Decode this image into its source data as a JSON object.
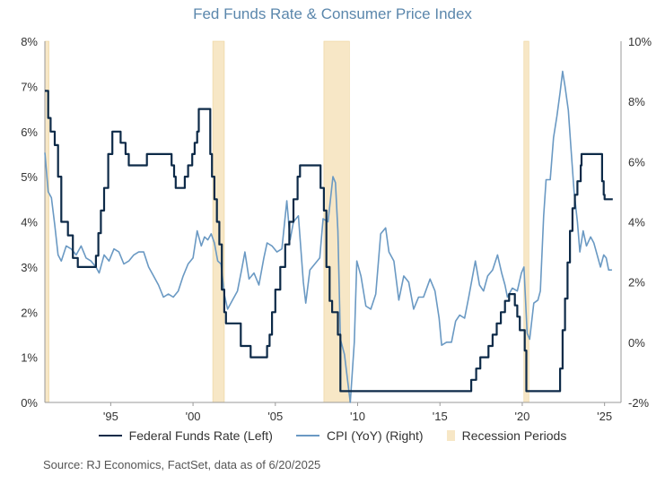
{
  "colors": {
    "fed": "#0d2a48",
    "cpi": "#6a99c3",
    "recession": "#f7e7c6",
    "recession_edge": "#ecd39a",
    "title": "#5b87ac"
  },
  "chart_data": {
    "type": "line",
    "title": "Fed Funds Rate & Consumer Price Index",
    "x_range": [
      1991.0,
      2026.0
    ],
    "x_ticks": [
      {
        "value": 1995,
        "label": "'95"
      },
      {
        "value": 2000,
        "label": "'00"
      },
      {
        "value": 2005,
        "label": "'05"
      },
      {
        "value": 2010,
        "label": "'10"
      },
      {
        "value": 2015,
        "label": "'15"
      },
      {
        "value": 2020,
        "label": "'20"
      },
      {
        "value": 2025,
        "label": "'25"
      }
    ],
    "y_left": {
      "range": [
        0,
        8
      ],
      "ticks": [
        0,
        1,
        2,
        3,
        4,
        5,
        6,
        7,
        8
      ],
      "tick_labels": [
        "0%",
        "1%",
        "2%",
        "3%",
        "4%",
        "5%",
        "6%",
        "7%",
        "8%"
      ]
    },
    "y_right": {
      "range": [
        -2,
        10
      ],
      "ticks": [
        -2,
        0,
        2,
        4,
        6,
        8,
        10
      ],
      "tick_labels": [
        "-2%",
        "0%",
        "2%",
        "4%",
        "6%",
        "8%",
        "10%"
      ]
    },
    "recessions": [
      [
        1991.0,
        1991.25
      ],
      [
        2001.2,
        2001.9
      ],
      [
        2007.95,
        2009.5
      ],
      [
        2020.1,
        2020.4
      ]
    ],
    "series": [
      {
        "name": "Federal Funds Rate (Left)",
        "axis": "left",
        "points": [
          [
            1991.0,
            6.9
          ],
          [
            1991.2,
            6.3
          ],
          [
            1991.35,
            6.0
          ],
          [
            1991.6,
            5.7
          ],
          [
            1991.8,
            5.0
          ],
          [
            1992.0,
            4.0
          ],
          [
            1992.4,
            3.7
          ],
          [
            1992.7,
            3.2
          ],
          [
            1993.0,
            3.0
          ],
          [
            1993.9,
            3.0
          ],
          [
            1994.1,
            3.25
          ],
          [
            1994.25,
            3.75
          ],
          [
            1994.4,
            4.25
          ],
          [
            1994.6,
            4.75
          ],
          [
            1994.85,
            5.5
          ],
          [
            1995.1,
            6.0
          ],
          [
            1995.6,
            5.75
          ],
          [
            1995.9,
            5.5
          ],
          [
            1996.1,
            5.25
          ],
          [
            1997.2,
            5.5
          ],
          [
            1998.7,
            5.25
          ],
          [
            1998.85,
            5.0
          ],
          [
            1998.95,
            4.75
          ],
          [
            1999.5,
            5.0
          ],
          [
            1999.7,
            5.25
          ],
          [
            1999.95,
            5.5
          ],
          [
            2000.1,
            5.75
          ],
          [
            2000.25,
            6.0
          ],
          [
            2000.35,
            6.5
          ],
          [
            2000.95,
            6.5
          ],
          [
            2001.05,
            5.5
          ],
          [
            2001.15,
            5.0
          ],
          [
            2001.3,
            4.5
          ],
          [
            2001.45,
            4.0
          ],
          [
            2001.6,
            3.5
          ],
          [
            2001.75,
            2.5
          ],
          [
            2001.9,
            2.0
          ],
          [
            2002.0,
            1.75
          ],
          [
            2002.9,
            1.25
          ],
          [
            2003.5,
            1.0
          ],
          [
            2004.45,
            1.0
          ],
          [
            2004.5,
            1.25
          ],
          [
            2004.65,
            1.5
          ],
          [
            2004.8,
            2.0
          ],
          [
            2005.0,
            2.5
          ],
          [
            2005.3,
            3.0
          ],
          [
            2005.6,
            3.5
          ],
          [
            2005.85,
            4.0
          ],
          [
            2006.1,
            4.5
          ],
          [
            2006.35,
            5.0
          ],
          [
            2006.5,
            5.25
          ],
          [
            2007.65,
            5.25
          ],
          [
            2007.75,
            4.75
          ],
          [
            2007.95,
            4.25
          ],
          [
            2008.1,
            3.0
          ],
          [
            2008.3,
            2.25
          ],
          [
            2008.45,
            2.0
          ],
          [
            2008.8,
            1.5
          ],
          [
            2008.95,
            0.25
          ],
          [
            2015.9,
            0.25
          ],
          [
            2016.9,
            0.5
          ],
          [
            2017.2,
            0.75
          ],
          [
            2017.45,
            1.0
          ],
          [
            2017.95,
            1.25
          ],
          [
            2018.2,
            1.5
          ],
          [
            2018.45,
            1.75
          ],
          [
            2018.7,
            2.0
          ],
          [
            2018.95,
            2.25
          ],
          [
            2019.2,
            2.4
          ],
          [
            2019.55,
            2.15
          ],
          [
            2019.7,
            1.9
          ],
          [
            2019.85,
            1.6
          ],
          [
            2020.15,
            1.15
          ],
          [
            2020.25,
            0.25
          ],
          [
            2022.15,
            0.25
          ],
          [
            2022.3,
            0.75
          ],
          [
            2022.45,
            1.6
          ],
          [
            2022.6,
            2.3
          ],
          [
            2022.75,
            3.1
          ],
          [
            2022.9,
            3.8
          ],
          [
            2023.05,
            4.3
          ],
          [
            2023.2,
            4.6
          ],
          [
            2023.35,
            4.9
          ],
          [
            2023.55,
            5.25
          ],
          [
            2023.6,
            5.5
          ],
          [
            2024.7,
            5.5
          ],
          [
            2024.85,
            4.9
          ],
          [
            2024.95,
            4.6
          ],
          [
            2025.0,
            4.5
          ],
          [
            2025.5,
            4.5
          ]
        ]
      },
      {
        "name": "CPI (YoY) (Right)",
        "axis": "right",
        "points": [
          [
            1991.0,
            6.3
          ],
          [
            1991.2,
            5.0
          ],
          [
            1991.4,
            4.8
          ],
          [
            1991.6,
            3.9
          ],
          [
            1991.8,
            2.9
          ],
          [
            1992.0,
            2.7
          ],
          [
            1992.3,
            3.2
          ],
          [
            1992.6,
            3.1
          ],
          [
            1992.9,
            2.9
          ],
          [
            1993.2,
            3.2
          ],
          [
            1993.5,
            2.8
          ],
          [
            1993.8,
            2.7
          ],
          [
            1994.1,
            2.5
          ],
          [
            1994.3,
            2.3
          ],
          [
            1994.6,
            2.9
          ],
          [
            1994.9,
            2.7
          ],
          [
            1995.2,
            3.1
          ],
          [
            1995.5,
            3.0
          ],
          [
            1995.8,
            2.6
          ],
          [
            1996.1,
            2.7
          ],
          [
            1996.4,
            2.9
          ],
          [
            1996.7,
            3.0
          ],
          [
            1997.0,
            3.0
          ],
          [
            1997.3,
            2.5
          ],
          [
            1997.6,
            2.2
          ],
          [
            1997.9,
            1.9
          ],
          [
            1998.2,
            1.5
          ],
          [
            1998.5,
            1.6
          ],
          [
            1998.8,
            1.5
          ],
          [
            1999.1,
            1.7
          ],
          [
            1999.4,
            2.2
          ],
          [
            1999.7,
            2.6
          ],
          [
            2000.0,
            2.8
          ],
          [
            2000.25,
            3.7
          ],
          [
            2000.5,
            3.2
          ],
          [
            2000.7,
            3.5
          ],
          [
            2000.9,
            3.4
          ],
          [
            2001.1,
            3.6
          ],
          [
            2001.3,
            3.3
          ],
          [
            2001.5,
            2.7
          ],
          [
            2001.7,
            2.6
          ],
          [
            2001.9,
            1.6
          ],
          [
            2002.1,
            1.1
          ],
          [
            2002.4,
            1.4
          ],
          [
            2002.7,
            1.7
          ],
          [
            2002.95,
            2.4
          ],
          [
            2003.15,
            3.0
          ],
          [
            2003.4,
            2.1
          ],
          [
            2003.7,
            2.3
          ],
          [
            2004.0,
            1.9
          ],
          [
            2004.3,
            2.8
          ],
          [
            2004.5,
            3.3
          ],
          [
            2004.8,
            3.2
          ],
          [
            2005.1,
            3.0
          ],
          [
            2005.4,
            3.1
          ],
          [
            2005.7,
            4.7
          ],
          [
            2005.9,
            3.4
          ],
          [
            2006.1,
            4.0
          ],
          [
            2006.4,
            4.2
          ],
          [
            2006.7,
            2.0
          ],
          [
            2006.85,
            1.3
          ],
          [
            2007.1,
            2.4
          ],
          [
            2007.4,
            2.6
          ],
          [
            2007.7,
            2.8
          ],
          [
            2007.9,
            4.1
          ],
          [
            2008.2,
            4.0
          ],
          [
            2008.5,
            5.5
          ],
          [
            2008.65,
            5.3
          ],
          [
            2008.8,
            3.7
          ],
          [
            2008.95,
            0.1
          ],
          [
            2009.2,
            -0.4
          ],
          [
            2009.55,
            -2.0
          ],
          [
            2009.8,
            0.0
          ],
          [
            2009.95,
            2.7
          ],
          [
            2010.2,
            2.2
          ],
          [
            2010.5,
            1.2
          ],
          [
            2010.8,
            1.1
          ],
          [
            2011.1,
            1.6
          ],
          [
            2011.4,
            3.6
          ],
          [
            2011.7,
            3.8
          ],
          [
            2011.9,
            3.0
          ],
          [
            2012.2,
            2.7
          ],
          [
            2012.5,
            1.4
          ],
          [
            2012.8,
            2.2
          ],
          [
            2013.1,
            2.0
          ],
          [
            2013.4,
            1.1
          ],
          [
            2013.7,
            1.5
          ],
          [
            2014.0,
            1.5
          ],
          [
            2014.4,
            2.1
          ],
          [
            2014.7,
            1.7
          ],
          [
            2014.95,
            0.8
          ],
          [
            2015.1,
            -0.1
          ],
          [
            2015.4,
            0.0
          ],
          [
            2015.7,
            0.0
          ],
          [
            2015.95,
            0.7
          ],
          [
            2016.2,
            0.9
          ],
          [
            2016.5,
            0.8
          ],
          [
            2016.75,
            1.5
          ],
          [
            2016.95,
            2.1
          ],
          [
            2017.15,
            2.7
          ],
          [
            2017.4,
            1.9
          ],
          [
            2017.65,
            1.7
          ],
          [
            2017.9,
            2.2
          ],
          [
            2018.2,
            2.4
          ],
          [
            2018.5,
            2.9
          ],
          [
            2018.75,
            2.3
          ],
          [
            2018.95,
            1.9
          ],
          [
            2019.1,
            1.5
          ],
          [
            2019.4,
            1.8
          ],
          [
            2019.7,
            1.7
          ],
          [
            2019.95,
            2.3
          ],
          [
            2020.1,
            2.5
          ],
          [
            2020.3,
            0.3
          ],
          [
            2020.45,
            0.1
          ],
          [
            2020.7,
            1.3
          ],
          [
            2020.95,
            1.4
          ],
          [
            2021.1,
            1.7
          ],
          [
            2021.3,
            4.2
          ],
          [
            2021.45,
            5.4
          ],
          [
            2021.7,
            5.4
          ],
          [
            2021.9,
            6.8
          ],
          [
            2022.1,
            7.5
          ],
          [
            2022.3,
            8.3
          ],
          [
            2022.45,
            9.0
          ],
          [
            2022.6,
            8.5
          ],
          [
            2022.8,
            7.7
          ],
          [
            2022.95,
            6.5
          ],
          [
            2023.15,
            5.0
          ],
          [
            2023.35,
            4.0
          ],
          [
            2023.5,
            3.0
          ],
          [
            2023.7,
            3.7
          ],
          [
            2023.9,
            3.2
          ],
          [
            2024.15,
            3.5
          ],
          [
            2024.35,
            3.3
          ],
          [
            2024.55,
            2.9
          ],
          [
            2024.75,
            2.5
          ],
          [
            2024.95,
            2.9
          ],
          [
            2025.1,
            2.8
          ],
          [
            2025.25,
            2.4
          ],
          [
            2025.45,
            2.4
          ]
        ]
      }
    ],
    "legend": {
      "fed_label": "Federal Funds Rate (Left)",
      "cpi_label": "CPI (YoY) (Right)",
      "recession_label": "Recession Periods",
      "placement": "bottom"
    },
    "source": "Source: RJ Economics, FactSet, data as of 6/20/2025"
  }
}
